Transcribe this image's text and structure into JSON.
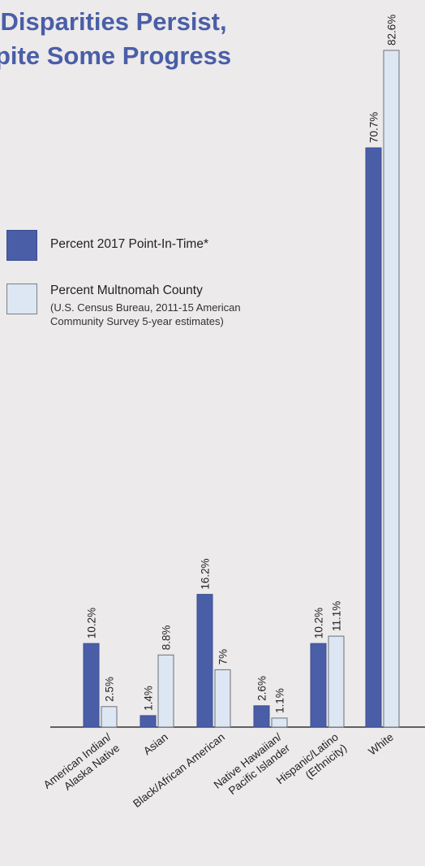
{
  "title": {
    "line1": "al Disparities Persist,",
    "line2": "pite Some Progress"
  },
  "legend": [
    {
      "label": "Percent 2017 Point-In-Time*",
      "color": "#4a5ea8"
    },
    {
      "label": "Percent Multnomah County",
      "note_line1": "(U.S. Census Bureau, 2011-15 American",
      "note_line2": "Community Survey 5-year estimates)",
      "color": "#dde6f3"
    }
  ],
  "chart_data": {
    "type": "bar",
    "categories": [
      [
        "American Indian/",
        "Alaska Native"
      ],
      [
        "Asian"
      ],
      [
        "Black/African American"
      ],
      [
        "Native Hawaiian/",
        "Pacific Islander"
      ],
      [
        "Hispanic/Latino",
        "(Ethnicity)"
      ],
      [
        "White"
      ]
    ],
    "series": [
      {
        "name": "Percent 2017 Point-In-Time*",
        "values": [
          10.2,
          1.4,
          16.2,
          2.6,
          10.2,
          70.7
        ],
        "labels": [
          "10.2%",
          "1.4%",
          "16.2%",
          "2.6%",
          "10.2%",
          "70.7%"
        ],
        "color": "#4a5ea8"
      },
      {
        "name": "Percent Multnomah County",
        "values": [
          2.5,
          8.8,
          7,
          1.1,
          11.1,
          82.6
        ],
        "labels": [
          "2.5%",
          "8.8%",
          "7%",
          "1.1%",
          "11.1%",
          "82.6%"
        ],
        "color": "#dde6f3"
      }
    ],
    "ylim": [
      0,
      82.6
    ],
    "grid": false
  }
}
